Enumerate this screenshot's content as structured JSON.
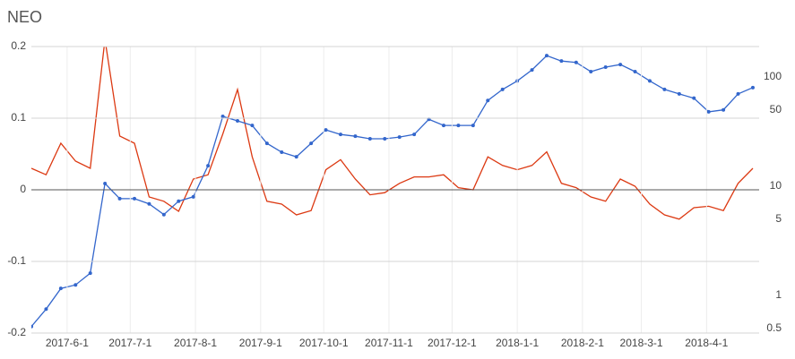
{
  "chart_data": {
    "type": "line",
    "title": "NEO",
    "x": [
      "2017-05-15",
      "2017-05-22",
      "2017-05-29",
      "2017-06-05",
      "2017-06-12",
      "2017-06-19",
      "2017-06-26",
      "2017-07-03",
      "2017-07-10",
      "2017-07-17",
      "2017-07-24",
      "2017-07-31",
      "2017-08-07",
      "2017-08-14",
      "2017-08-21",
      "2017-08-28",
      "2017-09-04",
      "2017-09-11",
      "2017-09-18",
      "2017-09-25",
      "2017-10-02",
      "2017-10-09",
      "2017-10-16",
      "2017-10-23",
      "2017-10-30",
      "2017-11-06",
      "2017-11-13",
      "2017-11-20",
      "2017-11-27",
      "2017-12-04",
      "2017-12-11",
      "2017-12-18",
      "2017-12-25",
      "2018-01-01",
      "2018-01-08",
      "2018-01-15",
      "2018-01-22",
      "2018-01-29",
      "2018-02-05",
      "2018-02-12",
      "2018-02-19",
      "2018-02-26",
      "2018-03-05",
      "2018-03-12",
      "2018-03-19",
      "2018-03-26",
      "2018-04-02",
      "2018-04-09",
      "2018-04-16",
      "2018-04-23"
    ],
    "series": [
      {
        "color": "#dc3912",
        "values": [
          0.03,
          0.021,
          0.065,
          0.04,
          0.03,
          0.21,
          0.075,
          0.065,
          -0.01,
          -0.016,
          -0.03,
          0.015,
          0.021,
          0.078,
          0.14,
          0.046,
          -0.016,
          -0.02,
          -0.035,
          -0.029,
          0.028,
          0.042,
          0.015,
          -0.007,
          -0.004,
          0.009,
          0.018,
          0.018,
          0.021,
          0.003,
          0,
          0.046,
          0.034,
          0.028,
          0.034,
          0.053,
          0.009,
          0.003,
          -0.01,
          -0.016,
          0.015,
          0.005,
          -0.02,
          -0.035,
          -0.041,
          -0.025,
          -0.023,
          -0.029,
          0.009,
          0.03
        ]
      },
      {
        "color": "#3366cc",
        "axis": "y2",
        "values": [
          0.52,
          0.75,
          1.16,
          1.25,
          1.6,
          10.6,
          7.7,
          7.7,
          6.9,
          5.5,
          7.3,
          8,
          15.4,
          43.6,
          39.7,
          36,
          24.7,
          20.5,
          18.6,
          24.7,
          32.8,
          29.8,
          28.7,
          27.2,
          27.2,
          28.2,
          29.8,
          41,
          36,
          36,
          36,
          61,
          77,
          92,
          116,
          157,
          140,
          136,
          112,
          123,
          130,
          112,
          92,
          77,
          70,
          64,
          48,
          50,
          70,
          80
        ]
      }
    ],
    "xlim": [
      "2017-05-15",
      "2018-04-26"
    ],
    "xticks": [
      {
        "value": "2017-06-01",
        "label": "2017-6-1"
      },
      {
        "value": "2017-07-01",
        "label": "2017-7-1"
      },
      {
        "value": "2017-08-01",
        "label": "2017-8-1"
      },
      {
        "value": "2017-09-01",
        "label": "2017-9-1"
      },
      {
        "value": "2017-10-01",
        "label": "2017-10-1"
      },
      {
        "value": "2017-11-01",
        "label": "2017-11-1"
      },
      {
        "value": "2017-12-01",
        "label": "2017-12-1"
      },
      {
        "value": "2018-01-01",
        "label": "2018-1-1"
      },
      {
        "value": "2018-02-01",
        "label": "2018-2-1"
      },
      {
        "value": "2018-03-01",
        "label": "2018-3-1"
      },
      {
        "value": "2018-04-01",
        "label": "2018-4-1"
      }
    ],
    "ylim": [
      -0.2,
      0.2
    ],
    "yticks": [
      -0.2,
      -0.1,
      0,
      0.1,
      0.2
    ],
    "y2lim": [
      0.453,
      190
    ],
    "y2ticks": [
      0.5,
      1,
      5,
      10,
      50,
      100
    ],
    "y2log": true,
    "grid": true
  }
}
